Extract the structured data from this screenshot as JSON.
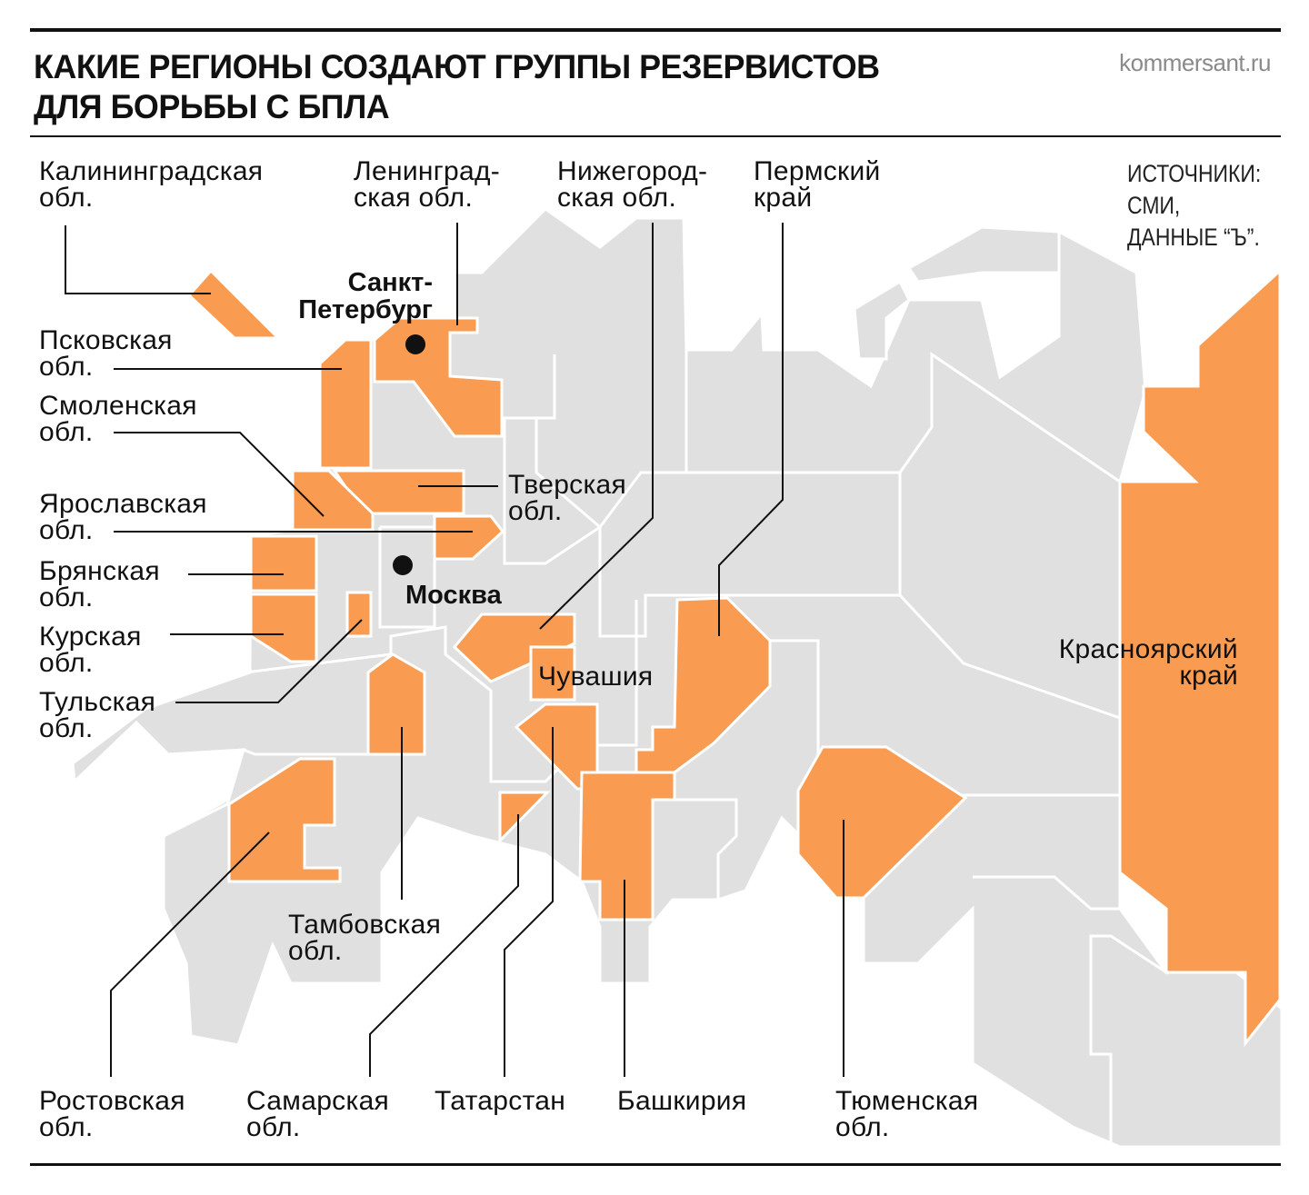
{
  "header": {
    "title_line1": "КАКИЕ РЕГИОНЫ СОЗДАЮТ ГРУППЫ РЕЗЕРВИСТОВ",
    "title_line2": "ДЛЯ БОРЬБЫ С БПЛА",
    "site": "kommersant.ru",
    "sources": "ИСТОЧНИКИ:\nСМИ,\nДАННЫЕ “Ъ”."
  },
  "colors": {
    "highlight": "#F99B50",
    "land": "#E0E0E0",
    "border": "#FFFFFF"
  },
  "regions": [
    {
      "label": "Калининградская\nобл."
    },
    {
      "label": "Ленинград-\nская обл."
    },
    {
      "label": "Нижегород-\nская обл."
    },
    {
      "label": "Пермский\nкрай"
    },
    {
      "label": "Псковская\nобл."
    },
    {
      "label": "Смоленская\nобл."
    },
    {
      "label": "Ярославская\nобл."
    },
    {
      "label": "Брянская\nобл."
    },
    {
      "label": "Курская\nобл."
    },
    {
      "label": "Тульская\nобл."
    },
    {
      "label": "Тверская\nобл."
    },
    {
      "label": "Чувашия"
    },
    {
      "label": "Красноярский\nкрай"
    },
    {
      "label": "Тамбовская\nобл."
    },
    {
      "label": "Ростовская\nобл."
    },
    {
      "label": "Самарская\nобл."
    },
    {
      "label": "Татарстан"
    },
    {
      "label": "Башкирия"
    },
    {
      "label": "Тюменская\nобл."
    }
  ],
  "cities": [
    {
      "label": "Санкт-\nПетербург"
    },
    {
      "label": "Москва"
    }
  ]
}
